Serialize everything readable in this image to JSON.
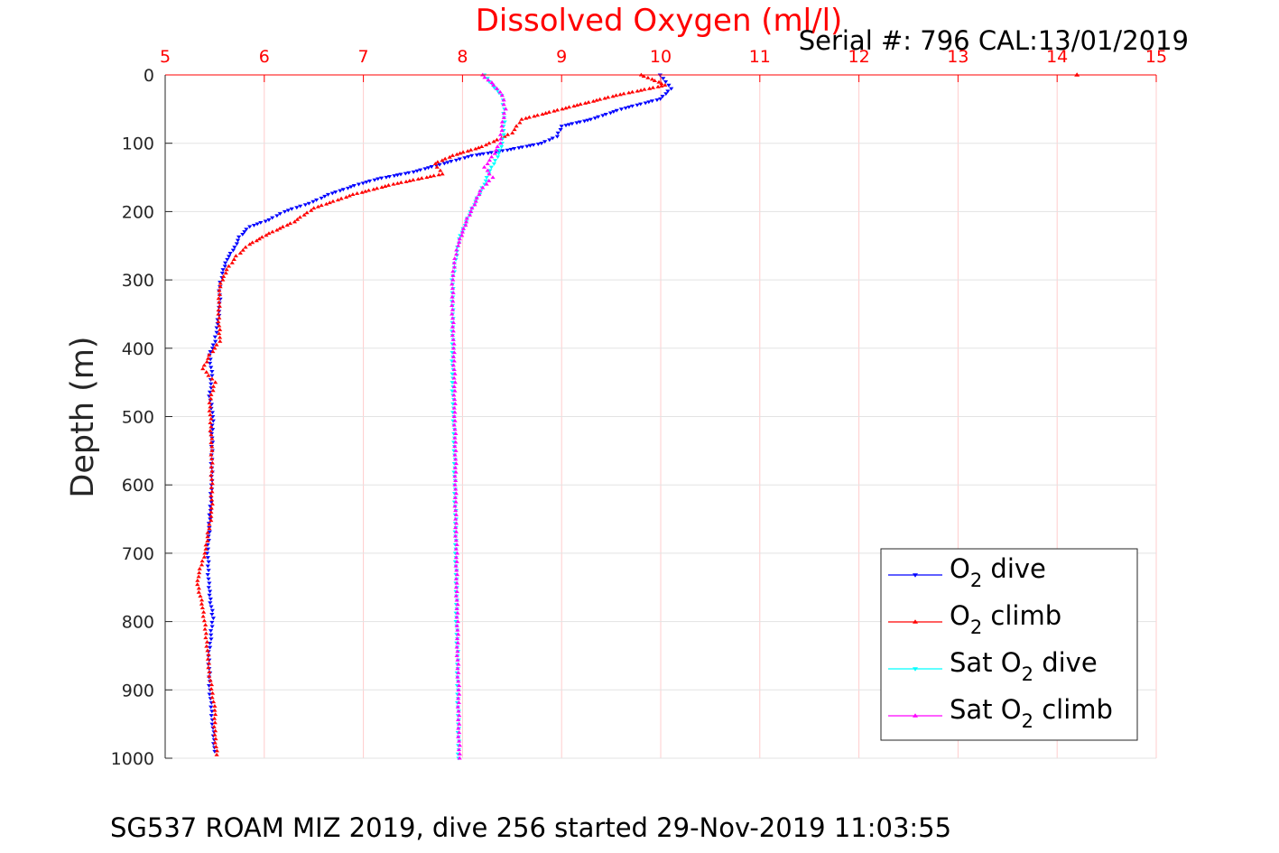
{
  "chart_data": {
    "type": "scatter",
    "title": "Dissolved Oxygen (ml/l)",
    "subtitle": "Serial #: 796  CAL:13/01/2019",
    "footer": "SG537 ROAM MIZ 2019, dive 256 started 29-Nov-2019 11:03:55",
    "xlabel": "Dissolved Oxygen (ml/l)",
    "ylabel": "Depth (m)",
    "xlim": [
      5,
      15
    ],
    "ylim": [
      0,
      1000
    ],
    "y_reversed": true,
    "x_axis_position": "top",
    "x_ticks": [
      "5",
      "6",
      "7",
      "8",
      "9",
      "10",
      "11",
      "12",
      "13",
      "14",
      "15"
    ],
    "y_ticks": [
      "0",
      "100",
      "200",
      "300",
      "400",
      "500",
      "600",
      "700",
      "800",
      "900",
      "1000"
    ],
    "grid": true,
    "legend": {
      "placement": "bottom-right",
      "entries": [
        {
          "base": "O",
          "sub": "2",
          "rest": " dive"
        },
        {
          "base": "O",
          "sub": "2",
          "rest": " climb"
        },
        {
          "base": "Sat O",
          "sub": "2",
          "rest": " dive"
        },
        {
          "base": "Sat O",
          "sub": "2",
          "rest": " climb"
        }
      ]
    },
    "series": [
      {
        "name": "O2 dive",
        "color": "#0000ff",
        "marker": "triangle-down",
        "points": [
          [
            10.0,
            0
          ],
          [
            10.05,
            10
          ],
          [
            10.1,
            20
          ],
          [
            10.0,
            35
          ],
          [
            9.6,
            50
          ],
          [
            9.3,
            65
          ],
          [
            9.0,
            75
          ],
          [
            8.95,
            90
          ],
          [
            8.8,
            100
          ],
          [
            8.45,
            110
          ],
          [
            8.1,
            118
          ],
          [
            7.85,
            128
          ],
          [
            7.5,
            142
          ],
          [
            7.15,
            152
          ],
          [
            6.95,
            160
          ],
          [
            6.65,
            175
          ],
          [
            6.45,
            188
          ],
          [
            6.2,
            200
          ],
          [
            6.05,
            212
          ],
          [
            5.85,
            222
          ],
          [
            5.75,
            237
          ],
          [
            5.7,
            252
          ],
          [
            5.62,
            270
          ],
          [
            5.58,
            290
          ],
          [
            5.55,
            310
          ],
          [
            5.55,
            340
          ],
          [
            5.52,
            370
          ],
          [
            5.5,
            390
          ],
          [
            5.45,
            410
          ],
          [
            5.47,
            440
          ],
          [
            5.45,
            470
          ],
          [
            5.48,
            500
          ],
          [
            5.47,
            550
          ],
          [
            5.47,
            600
          ],
          [
            5.45,
            650
          ],
          [
            5.43,
            700
          ],
          [
            5.44,
            750
          ],
          [
            5.48,
            795
          ],
          [
            5.44,
            850
          ],
          [
            5.45,
            900
          ],
          [
            5.48,
            950
          ],
          [
            5.5,
            990
          ]
        ]
      },
      {
        "name": "O2 climb",
        "color": "#ff0000",
        "marker": "triangle-up",
        "points": [
          [
            14.2,
            0
          ],
          [
            9.8,
            0
          ],
          [
            10.05,
            15
          ],
          [
            9.55,
            30
          ],
          [
            9.0,
            50
          ],
          [
            8.6,
            65
          ],
          [
            8.5,
            85
          ],
          [
            8.2,
            105
          ],
          [
            7.9,
            118
          ],
          [
            7.72,
            130
          ],
          [
            7.8,
            145
          ],
          [
            7.3,
            160
          ],
          [
            6.9,
            175
          ],
          [
            6.5,
            195
          ],
          [
            6.3,
            215
          ],
          [
            6.05,
            232
          ],
          [
            5.85,
            248
          ],
          [
            5.72,
            265
          ],
          [
            5.62,
            285
          ],
          [
            5.55,
            310
          ],
          [
            5.54,
            350
          ],
          [
            5.55,
            390
          ],
          [
            5.45,
            410
          ],
          [
            5.38,
            430
          ],
          [
            5.5,
            450
          ],
          [
            5.45,
            480
          ],
          [
            5.47,
            550
          ],
          [
            5.47,
            640
          ],
          [
            5.4,
            700
          ],
          [
            5.32,
            740
          ],
          [
            5.38,
            780
          ],
          [
            5.42,
            830
          ],
          [
            5.45,
            880
          ],
          [
            5.5,
            930
          ],
          [
            5.5,
            960
          ],
          [
            5.52,
            995
          ]
        ]
      },
      {
        "name": "Sat O2 dive",
        "color": "#00ffff",
        "marker": "triangle-down",
        "points": [
          [
            8.22,
            0
          ],
          [
            8.3,
            15
          ],
          [
            8.4,
            30
          ],
          [
            8.42,
            50
          ],
          [
            8.42,
            75
          ],
          [
            8.4,
            100
          ],
          [
            8.35,
            120
          ],
          [
            8.28,
            140
          ],
          [
            8.22,
            160
          ],
          [
            8.15,
            180
          ],
          [
            8.08,
            200
          ],
          [
            8.02,
            220
          ],
          [
            7.97,
            240
          ],
          [
            7.93,
            270
          ],
          [
            7.9,
            300
          ],
          [
            7.9,
            350
          ],
          [
            7.9,
            400
          ],
          [
            7.9,
            450
          ],
          [
            7.91,
            500
          ],
          [
            7.92,
            550
          ],
          [
            7.92,
            600
          ],
          [
            7.93,
            650
          ],
          [
            7.93,
            700
          ],
          [
            7.94,
            750
          ],
          [
            7.94,
            800
          ],
          [
            7.95,
            850
          ],
          [
            7.95,
            900
          ],
          [
            7.96,
            950
          ],
          [
            7.96,
            1000
          ]
        ]
      },
      {
        "name": "Sat O2 climb",
        "color": "#ff00ff",
        "marker": "triangle-up",
        "points": [
          [
            8.2,
            0
          ],
          [
            8.32,
            15
          ],
          [
            8.4,
            30
          ],
          [
            8.43,
            50
          ],
          [
            8.4,
            75
          ],
          [
            8.38,
            100
          ],
          [
            8.3,
            120
          ],
          [
            8.22,
            135
          ],
          [
            8.3,
            150
          ],
          [
            8.18,
            170
          ],
          [
            8.12,
            190
          ],
          [
            8.05,
            210
          ],
          [
            8.0,
            230
          ],
          [
            7.95,
            250
          ],
          [
            7.92,
            275
          ],
          [
            7.9,
            300
          ],
          [
            7.9,
            350
          ],
          [
            7.91,
            400
          ],
          [
            7.92,
            450
          ],
          [
            7.92,
            500
          ],
          [
            7.93,
            550
          ],
          [
            7.93,
            600
          ],
          [
            7.93,
            650
          ],
          [
            7.94,
            700
          ],
          [
            7.94,
            750
          ],
          [
            7.95,
            800
          ],
          [
            7.95,
            850
          ],
          [
            7.96,
            900
          ],
          [
            7.96,
            950
          ],
          [
            7.97,
            1000
          ]
        ]
      }
    ]
  }
}
